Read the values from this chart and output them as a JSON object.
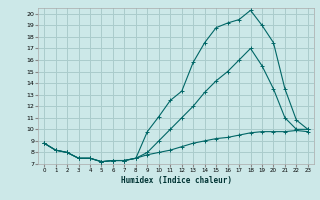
{
  "background_color": "#cce8e8",
  "grid_color": "#aacccc",
  "line_color": "#006666",
  "xlabel": "Humidex (Indice chaleur)",
  "xlim": [
    -0.5,
    23.5
  ],
  "ylim": [
    7,
    20.5
  ],
  "yticks": [
    7,
    8,
    9,
    10,
    11,
    12,
    13,
    14,
    15,
    16,
    17,
    18,
    19,
    20
  ],
  "xticks": [
    0,
    1,
    2,
    3,
    4,
    5,
    6,
    7,
    8,
    9,
    10,
    11,
    12,
    13,
    14,
    15,
    16,
    17,
    18,
    19,
    20,
    21,
    22,
    23
  ],
  "curve1_x": [
    0,
    1,
    2,
    3,
    4,
    5,
    6,
    7,
    8,
    9,
    10,
    11,
    12,
    13,
    14,
    15,
    16,
    17,
    18,
    19,
    20,
    21,
    22,
    23
  ],
  "curve1_y": [
    8.8,
    8.2,
    8.0,
    7.5,
    7.5,
    7.2,
    7.3,
    7.3,
    7.5,
    9.8,
    11.1,
    12.5,
    13.3,
    15.8,
    17.5,
    18.8,
    19.2,
    19.5,
    20.3,
    19.0,
    17.5,
    13.5,
    10.8,
    10.0
  ],
  "curve2_x": [
    0,
    1,
    2,
    3,
    4,
    5,
    6,
    7,
    8,
    9,
    10,
    11,
    12,
    13,
    14,
    15,
    16,
    17,
    18,
    19,
    20,
    21,
    22,
    23
  ],
  "curve2_y": [
    8.8,
    8.2,
    8.0,
    7.5,
    7.5,
    7.2,
    7.3,
    7.3,
    7.5,
    8.0,
    9.0,
    10.0,
    11.0,
    12.0,
    13.2,
    14.2,
    15.0,
    16.0,
    17.0,
    15.5,
    13.5,
    11.0,
    10.0,
    10.0
  ],
  "curve3_x": [
    0,
    1,
    2,
    3,
    4,
    5,
    6,
    7,
    8,
    9,
    10,
    11,
    12,
    13,
    14,
    15,
    16,
    17,
    18,
    19,
    20,
    21,
    22,
    23
  ],
  "curve3_y": [
    8.8,
    8.2,
    8.0,
    7.5,
    7.5,
    7.2,
    7.3,
    7.3,
    7.5,
    7.8,
    8.0,
    8.2,
    8.5,
    8.8,
    9.0,
    9.2,
    9.3,
    9.5,
    9.7,
    9.8,
    9.8,
    9.8,
    9.9,
    9.8
  ]
}
